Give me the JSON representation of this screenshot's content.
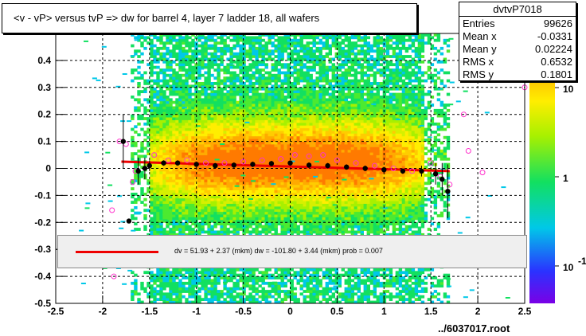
{
  "title": "<v - vP>       versus  tvP =>  dw for barrel 4, layer 7 ladder 18, all wafers",
  "stats": {
    "name": "dvtvP7018",
    "rows": [
      {
        "key": "Entries",
        "value": "99626"
      },
      {
        "key": "Mean x",
        "value": "-0.0331"
      },
      {
        "key": "Mean y",
        "value": "0.02224"
      },
      {
        "key": "RMS x",
        "value": "0.6532"
      },
      {
        "key": "RMS y",
        "value": "0.1801"
      }
    ]
  },
  "legend_text": "dv =    51.93 +   2.37 (mkm) dw = -101.80 +   3.44 (mkm) prob = 0.007",
  "file_label": "../6037017.root",
  "colors": {
    "fit_line": "#ee0000",
    "profile_points": "#000000",
    "mean_markers": "#ff33cc",
    "frame": "#000000"
  },
  "chart_data": {
    "type": "heatmap",
    "title": "<v - vP>       versus  tvP =>  dw for barrel 4, layer 7 ladder 18, all wafers",
    "xlim": [
      -2.5,
      2.5
    ],
    "ylim": [
      -0.5,
      0.5
    ],
    "x_ticks": [
      "-2.5",
      "-2",
      "-1.5",
      "-1",
      "-0.5",
      "0",
      "0.5",
      "1",
      "1.5",
      "2",
      "2.5"
    ],
    "y_ticks": [
      "-0.5",
      "-0.4",
      "-0.3",
      "-0.2",
      "-0.1",
      "0",
      "0.1",
      "0.2",
      "0.3",
      "0.4"
    ],
    "z_ticks": [
      "10",
      "1",
      "10"
    ],
    "z_tick_exponent": "-1",
    "z_scale": "log",
    "grid": true,
    "density": {
      "x_range": [
        -1.7,
        1.7
      ],
      "core_x_range": [
        -1.5,
        1.4
      ],
      "y_center": 0.02,
      "y_rms": 0.18
    },
    "fit_line": {
      "x": [
        -1.8,
        1.7
      ],
      "y": [
        0.025,
        -0.01
      ]
    },
    "profile_points": [
      {
        "x": -1.78,
        "y": 0.1,
        "err": 0.1
      },
      {
        "x": -1.72,
        "y": -0.195,
        "err": 0.0
      },
      {
        "x": -1.62,
        "y": -0.01,
        "err": 0.05
      },
      {
        "x": -1.55,
        "y": 0.0,
        "err": 0.04
      },
      {
        "x": -1.5,
        "y": 0.01,
        "err": 0.02
      },
      {
        "x": -1.35,
        "y": 0.02,
        "err": 0.01
      },
      {
        "x": -1.2,
        "y": 0.02,
        "err": 0.01
      },
      {
        "x": -1.0,
        "y": 0.015,
        "err": 0.01
      },
      {
        "x": -0.8,
        "y": 0.01,
        "err": 0.01
      },
      {
        "x": -0.6,
        "y": 0.012,
        "err": 0.01
      },
      {
        "x": -0.4,
        "y": 0.015,
        "err": 0.01
      },
      {
        "x": -0.2,
        "y": 0.018,
        "err": 0.01
      },
      {
        "x": 0.0,
        "y": 0.02,
        "err": 0.01
      },
      {
        "x": 0.2,
        "y": 0.012,
        "err": 0.01
      },
      {
        "x": 0.4,
        "y": 0.01,
        "err": 0.01
      },
      {
        "x": 0.6,
        "y": 0.005,
        "err": 0.01
      },
      {
        "x": 0.8,
        "y": 0.0,
        "err": 0.01
      },
      {
        "x": 1.0,
        "y": -0.005,
        "err": 0.01
      },
      {
        "x": 1.2,
        "y": -0.01,
        "err": 0.01
      },
      {
        "x": 1.4,
        "y": -0.01,
        "err": 0.02
      },
      {
        "x": 1.55,
        "y": -0.02,
        "err": 0.04
      },
      {
        "x": 1.62,
        "y": -0.04,
        "err": 0.06
      },
      {
        "x": 1.68,
        "y": -0.085,
        "err": 0.1
      }
    ],
    "mean_markers": [
      {
        "x": -1.82,
        "y": 0.1
      },
      {
        "x": -1.75,
        "y": 0.09
      },
      {
        "x": -1.68,
        "y": -0.05
      },
      {
        "x": -1.65,
        "y": -0.01
      },
      {
        "x": -1.9,
        "y": -0.155
      },
      {
        "x": -1.45,
        "y": 0.05
      },
      {
        "x": -1.3,
        "y": 0.03
      },
      {
        "x": -1.1,
        "y": 0.03
      },
      {
        "x": -0.9,
        "y": 0.02
      },
      {
        "x": -0.7,
        "y": 0.02
      },
      {
        "x": -0.5,
        "y": 0.025
      },
      {
        "x": -0.3,
        "y": 0.03
      },
      {
        "x": -0.1,
        "y": 0.035
      },
      {
        "x": 0.05,
        "y": 0.05
      },
      {
        "x": 0.2,
        "y": 0.045
      },
      {
        "x": 0.35,
        "y": 0.05
      },
      {
        "x": 0.5,
        "y": 0.03
      },
      {
        "x": 0.7,
        "y": 0.02
      },
      {
        "x": 0.9,
        "y": 0.01
      },
      {
        "x": 1.1,
        "y": 0.0
      },
      {
        "x": 1.3,
        "y": -0.01
      },
      {
        "x": 1.5,
        "y": 0.02
      },
      {
        "x": 1.6,
        "y": -0.03
      },
      {
        "x": 1.7,
        "y": -0.06
      },
      {
        "x": 1.85,
        "y": 0.2
      },
      {
        "x": 1.9,
        "y": 0.065
      },
      {
        "x": 2.05,
        "y": -0.015
      },
      {
        "x": 2.5,
        "y": 0.3
      },
      {
        "x": -1.88,
        "y": -0.4
      }
    ]
  }
}
